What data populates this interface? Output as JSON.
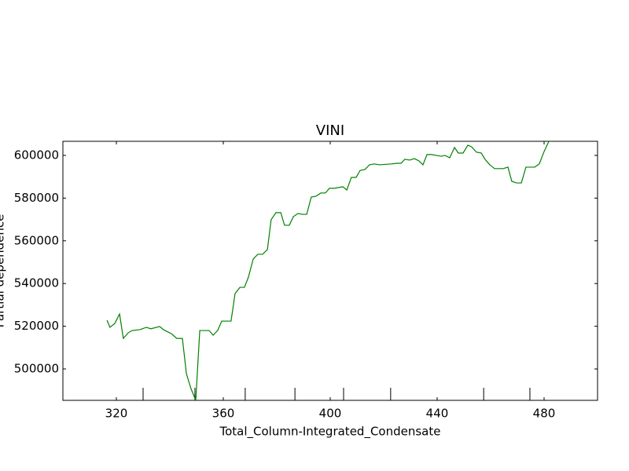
{
  "chart_data": {
    "type": "line",
    "title": "VINI",
    "x_label": "Total_Column-Integrated_Condensate",
    "y_label": "Partial dependence",
    "color": "#008000",
    "x": [
      316.5,
      317.6,
      319.4,
      321.2,
      322.6,
      324.4,
      325.9,
      328.8,
      331.2,
      332.9,
      336.2,
      337.6,
      340.6,
      342.6,
      344.7,
      346.2,
      347.9,
      349.7,
      351.2,
      354.7,
      356.2,
      357.9,
      359.4,
      362.9,
      364.4,
      366.2,
      367.9,
      369.4,
      371.2,
      372.9,
      374.7,
      376.5,
      377.9,
      379.7,
      381.5,
      382.9,
      384.7,
      386.2,
      387.9,
      389.7,
      391.2,
      392.9,
      394.7,
      396.5,
      398.2,
      399.7,
      401.5,
      404.7,
      406.2,
      407.9,
      409.7,
      411.2,
      413,
      414.7,
      416.5,
      418.5,
      422.9,
      425,
      426.5,
      427.9,
      429.7,
      431.5,
      433.2,
      434.7,
      436.2,
      437.9,
      439.7,
      441.5,
      442.9,
      444.7,
      446.5,
      447.9,
      449.7,
      451.5,
      452.9,
      454.7,
      456.5,
      457.9,
      459.7,
      461.5,
      464.7,
      466.5,
      467.9,
      469.7,
      471.5,
      473.2,
      476.5,
      478.2,
      480,
      481.8
    ],
    "values": [
      522800,
      519500,
      521300,
      525700,
      514300,
      516900,
      518000,
      518400,
      519500,
      518800,
      519900,
      518400,
      516500,
      514300,
      514300,
      497800,
      490800,
      485300,
      518000,
      518000,
      515800,
      518000,
      522400,
      522400,
      535300,
      538200,
      538200,
      543000,
      551500,
      553700,
      553700,
      555900,
      569900,
      573200,
      573200,
      567300,
      567300,
      571300,
      572800,
      572400,
      572400,
      580500,
      580900,
      582400,
      582400,
      584600,
      584600,
      585300,
      583800,
      589700,
      589700,
      593000,
      593400,
      595600,
      596000,
      595600,
      596000,
      596300,
      596300,
      598200,
      597800,
      598500,
      597400,
      595600,
      600400,
      600400,
      600000,
      599600,
      600000,
      598900,
      603700,
      601100,
      601100,
      604800,
      604000,
      601500,
      601100,
      598200,
      595600,
      593800,
      593800,
      594500,
      587900,
      587100,
      587100,
      594500,
      594500,
      596000,
      601800,
      606600
    ],
    "deciles": [
      330,
      349.4,
      368.2,
      386.8,
      405,
      422.6,
      457.4,
      474.7
    ],
    "xlim": [
      300,
      500
    ],
    "ylim": [
      485300,
      606600
    ],
    "xticks": [
      320,
      360,
      400,
      440,
      480
    ],
    "yticks": [
      500000,
      520000,
      540000,
      560000,
      580000,
      600000
    ]
  }
}
